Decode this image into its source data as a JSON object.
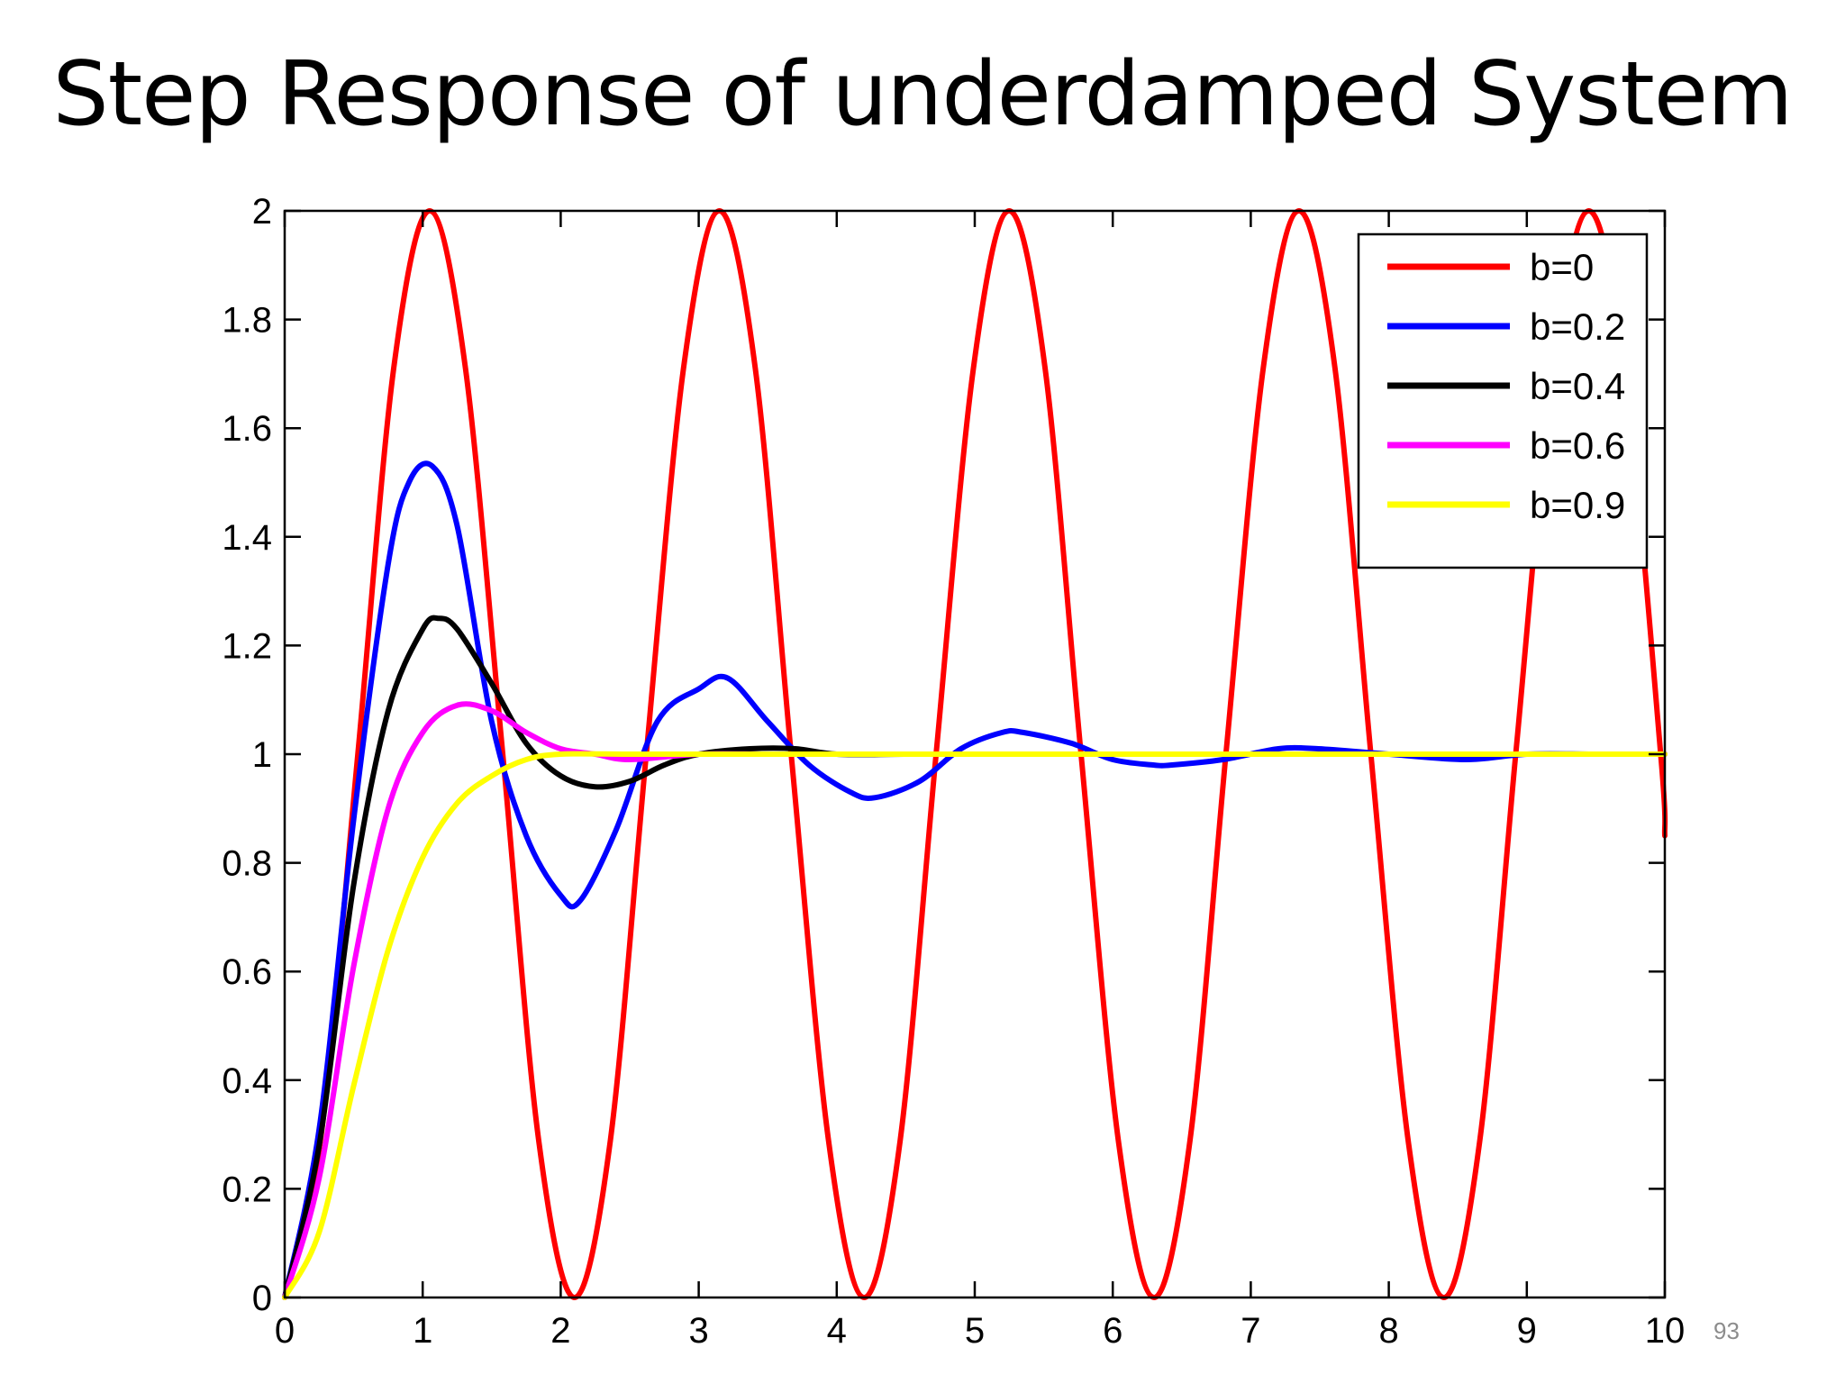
{
  "slide": {
    "title": "Step Response of underdamped System",
    "page_number": "93"
  },
  "chart_data": {
    "type": "line",
    "title": "",
    "xlabel": "",
    "ylabel": "",
    "xlim": [
      0,
      10
    ],
    "ylim": [
      0,
      2
    ],
    "x_ticks": [
      "0",
      "1",
      "2",
      "3",
      "4",
      "5",
      "6",
      "7",
      "8",
      "9",
      "10"
    ],
    "y_ticks": [
      "0",
      "0.2",
      "0.4",
      "0.6",
      "0.8",
      "1",
      "1.2",
      "1.4",
      "1.6",
      "1.8",
      "2"
    ],
    "grid": false,
    "legend_position": "top-right",
    "series": [
      {
        "name": "b=0",
        "color": "#ff0000",
        "x": [
          0,
          0.26,
          0.53,
          0.79,
          1.05,
          1.31,
          1.58,
          1.84,
          2.1,
          2.36,
          2.62,
          2.89,
          3.15,
          3.41,
          3.67,
          3.94,
          4.2,
          4.46,
          4.72,
          4.99,
          5.25,
          5.51,
          5.77,
          6.04,
          6.3,
          6.56,
          6.82,
          7.09,
          7.35,
          7.61,
          7.87,
          8.14,
          8.4,
          8.66,
          8.92,
          9.19,
          9.45,
          9.71,
          9.97,
          10
        ],
        "y": [
          0,
          0.29,
          1.0,
          1.71,
          2.0,
          1.71,
          1.0,
          0.29,
          0,
          0.29,
          1.0,
          1.71,
          2.0,
          1.71,
          1.0,
          0.29,
          0,
          0.29,
          1.0,
          1.71,
          2.0,
          1.71,
          1.0,
          0.29,
          0,
          0.29,
          1.0,
          1.71,
          2.0,
          1.71,
          1.0,
          0.29,
          0,
          0.29,
          1.0,
          1.71,
          2.0,
          1.71,
          1.0,
          0.85
        ]
      },
      {
        "name": "b=0.2",
        "color": "#0000ff",
        "x": [
          0,
          0.25,
          0.5,
          0.75,
          0.9,
          1.07,
          1.25,
          1.5,
          1.75,
          2.0,
          2.14,
          2.4,
          2.7,
          3.0,
          3.21,
          3.5,
          3.8,
          4.1,
          4.28,
          4.6,
          4.9,
          5.2,
          5.35,
          5.7,
          6.0,
          6.3,
          6.42,
          6.8,
          7.2,
          7.49,
          8.0,
          8.56,
          9.0,
          9.5,
          10
        ],
        "y": [
          0,
          0.31,
          0.88,
          1.35,
          1.5,
          1.53,
          1.42,
          1.06,
          0.85,
          0.74,
          0.73,
          0.86,
          1.06,
          1.12,
          1.14,
          1.06,
          0.98,
          0.93,
          0.92,
          0.95,
          1.01,
          1.04,
          1.04,
          1.02,
          0.99,
          0.98,
          0.98,
          0.99,
          1.01,
          1.01,
          1.0,
          0.99,
          1.0,
          1.0,
          1.0
        ]
      },
      {
        "name": "b=0.4",
        "color": "#000000",
        "x": [
          0,
          0.25,
          0.5,
          0.75,
          1.0,
          1.12,
          1.25,
          1.5,
          1.75,
          2.0,
          2.25,
          2.5,
          2.75,
          3.0,
          3.37,
          3.7,
          4.0,
          4.49,
          5.0,
          5.6,
          6.0,
          7.0,
          8.0,
          9.0,
          10
        ],
        "y": [
          0,
          0.28,
          0.76,
          1.08,
          1.23,
          1.25,
          1.23,
          1.13,
          1.02,
          0.96,
          0.94,
          0.95,
          0.98,
          1.0,
          1.01,
          1.01,
          1.0,
          1.0,
          1.0,
          1.0,
          1.0,
          1.0,
          1.0,
          1.0,
          1.0
        ]
      },
      {
        "name": "b=0.6",
        "color": "#ff00ff",
        "x": [
          0,
          0.25,
          0.5,
          0.75,
          1.0,
          1.25,
          1.5,
          1.75,
          2.0,
          2.25,
          2.5,
          3.0,
          3.5,
          4.0,
          5.0,
          6.0,
          7.0,
          8.0,
          9.0,
          10
        ],
        "y": [
          0,
          0.22,
          0.61,
          0.9,
          1.04,
          1.09,
          1.08,
          1.04,
          1.01,
          1.0,
          0.99,
          1.0,
          1.0,
          1.0,
          1.0,
          1.0,
          1.0,
          1.0,
          1.0,
          1.0
        ]
      },
      {
        "name": "b=0.9",
        "color": "#ffff00",
        "x": [
          0,
          0.25,
          0.5,
          0.75,
          1.0,
          1.25,
          1.5,
          1.75,
          2.0,
          2.5,
          3.0,
          4.0,
          5.0,
          6.0,
          7.0,
          8.0,
          9.0,
          10
        ],
        "y": [
          0,
          0.12,
          0.39,
          0.64,
          0.81,
          0.91,
          0.96,
          0.99,
          1.0,
          1.0,
          1.0,
          1.0,
          1.0,
          1.0,
          1.0,
          1.0,
          1.0,
          1.0
        ]
      }
    ]
  }
}
